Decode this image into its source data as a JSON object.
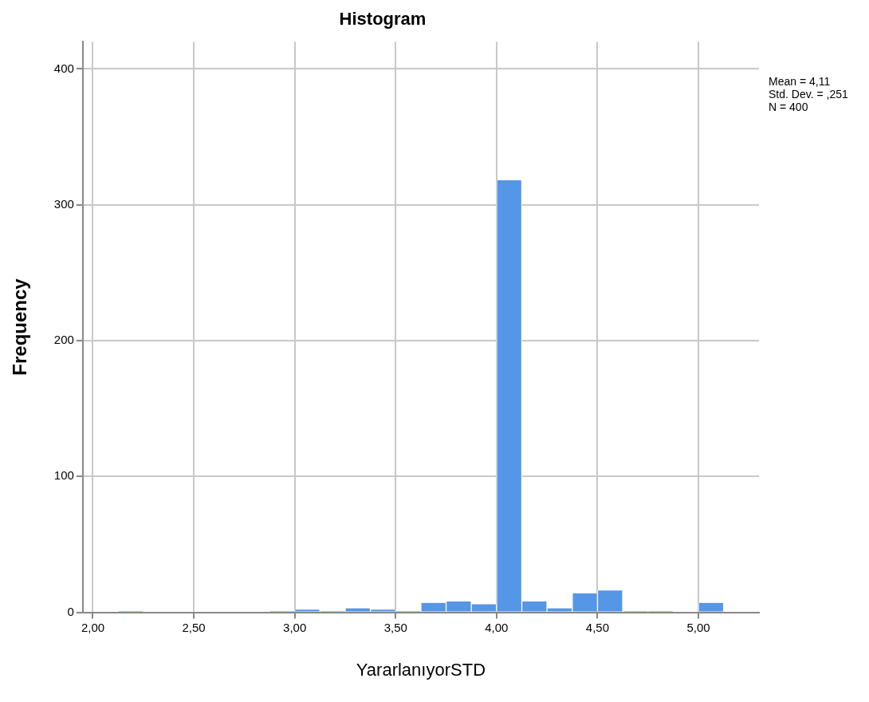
{
  "chart_data": {
    "type": "histogram",
    "title": "Histogram",
    "xlabel": "YararlanıyorSTD",
    "ylabel": "Frequency",
    "annotations": [
      "Mean = 4,11",
      "Std. Dev. = ,251",
      "N = 400"
    ],
    "bins": [
      2.125,
      2.25,
      2.375,
      2.5,
      2.625,
      2.75,
      2.875,
      3.0,
      3.125,
      3.25,
      3.375,
      3.5,
      3.625,
      3.75,
      3.875,
      4.0,
      4.125,
      4.25,
      4.375,
      4.5,
      4.625,
      4.75,
      4.875,
      5.0,
      5.125
    ],
    "values": [
      1,
      0,
      0,
      0,
      0,
      0,
      1,
      2,
      1,
      3,
      2,
      1,
      7,
      8,
      6,
      318,
      8,
      3,
      14,
      16,
      1,
      1,
      0,
      7
    ],
    "color": "#5596e6",
    "xlim": [
      1.95,
      5.3
    ],
    "xticks": [
      {
        "value": 2,
        "label": "2,00"
      },
      {
        "value": 2.5,
        "label": "2,50"
      },
      {
        "value": 3,
        "label": "3,00"
      },
      {
        "value": 3.5,
        "label": "3,50"
      },
      {
        "value": 4,
        "label": "4,00"
      },
      {
        "value": 4.5,
        "label": "4,50"
      },
      {
        "value": 5,
        "label": "5,00"
      }
    ],
    "ylim": [
      0,
      420
    ],
    "yticks": [
      0,
      100,
      200,
      300,
      400
    ],
    "grid": true
  }
}
